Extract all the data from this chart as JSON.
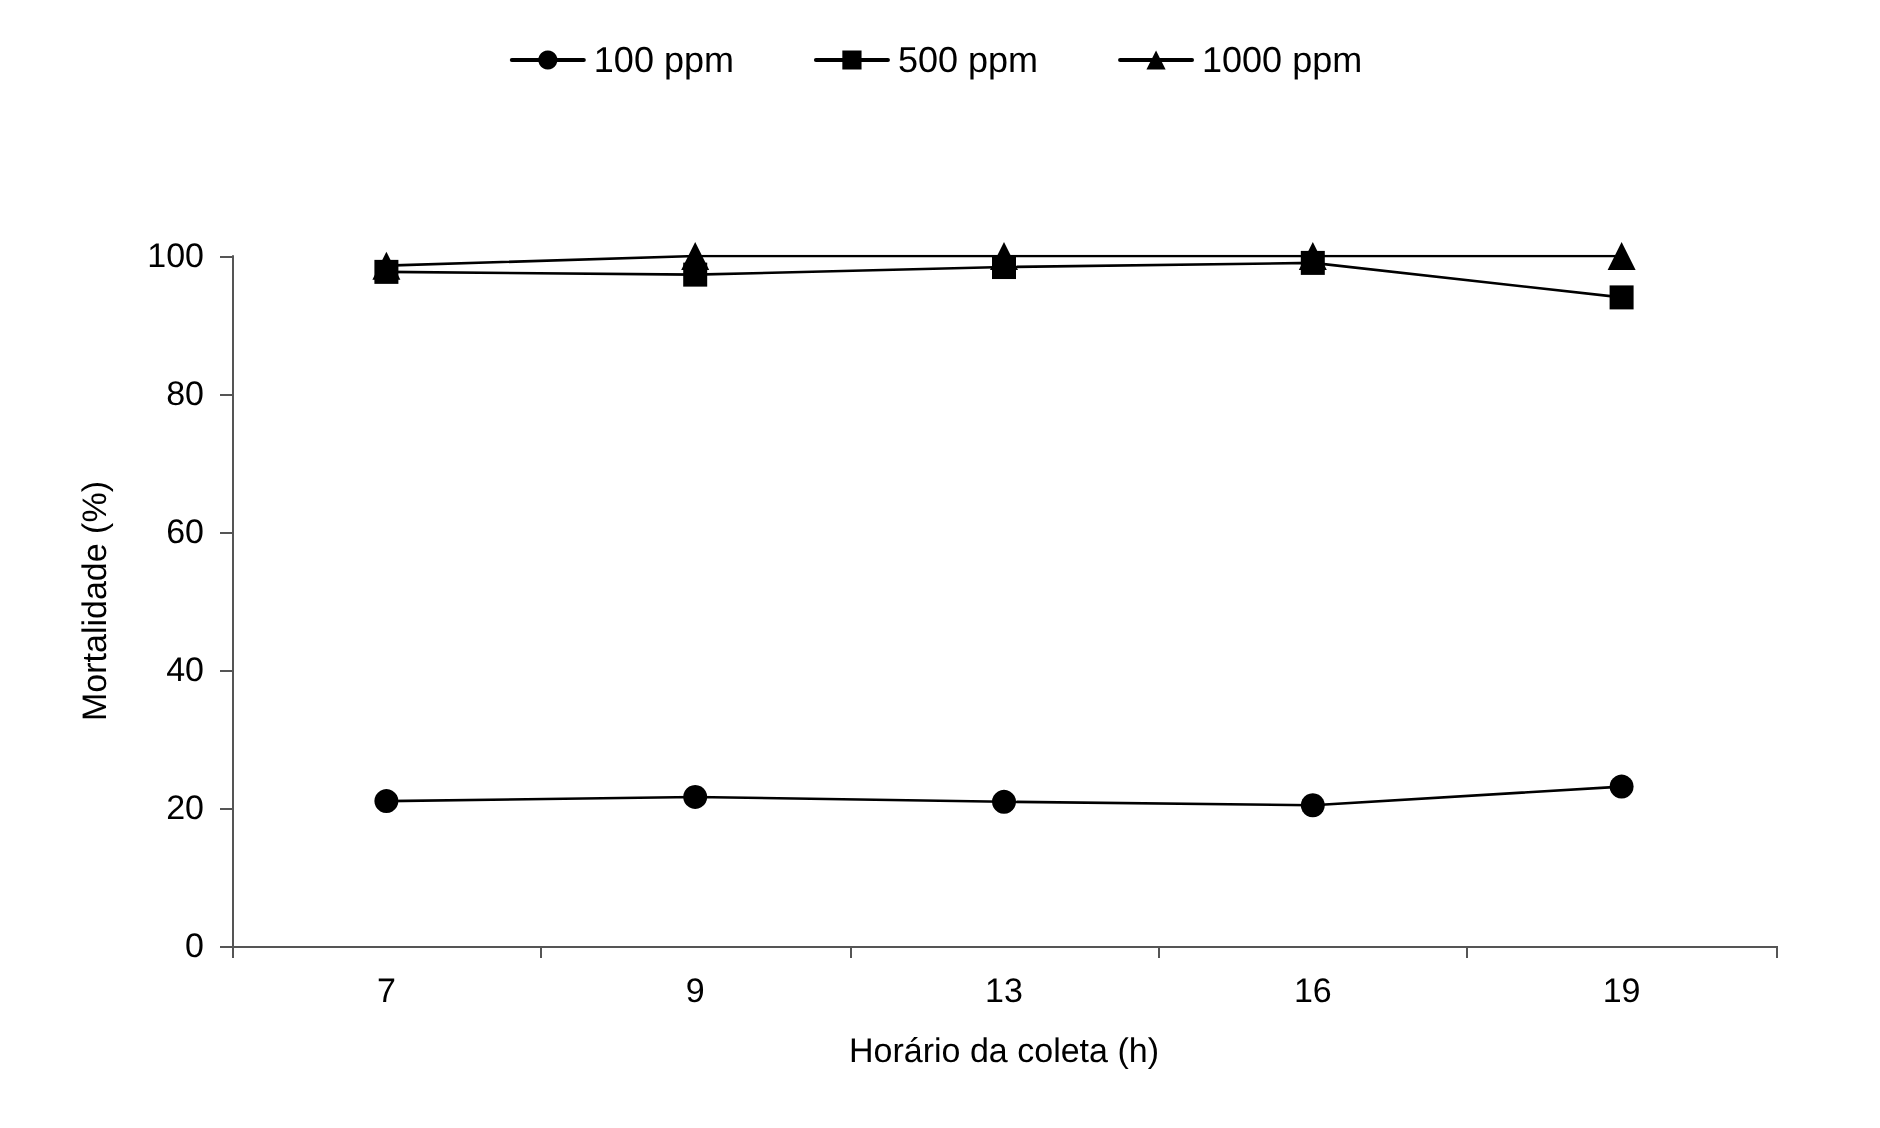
{
  "chart_data": {
    "type": "line",
    "xlabel": "Horário da coleta (h)",
    "ylabel": "Mortalidade (%)",
    "categories": [
      "7",
      "9",
      "13",
      "16",
      "19"
    ],
    "series": [
      {
        "name": "100 ppm",
        "color": "#000000",
        "marker": "circle",
        "values": [
          21.0,
          21.6,
          20.9,
          20.4,
          23.1
        ]
      },
      {
        "name": "500 ppm",
        "color": "#000000",
        "marker": "square",
        "values": [
          97.7,
          97.3,
          98.4,
          99.0,
          94.0
        ]
      },
      {
        "name": "1000 ppm",
        "color": "#000000",
        "marker": "triangle",
        "values": [
          98.6,
          100,
          100,
          100,
          100
        ]
      }
    ],
    "ylim": [
      0,
      100
    ],
    "yticks": [
      0,
      20,
      40,
      60,
      80,
      100
    ],
    "grid": false,
    "legend": "top",
    "line_style": "solid"
  }
}
